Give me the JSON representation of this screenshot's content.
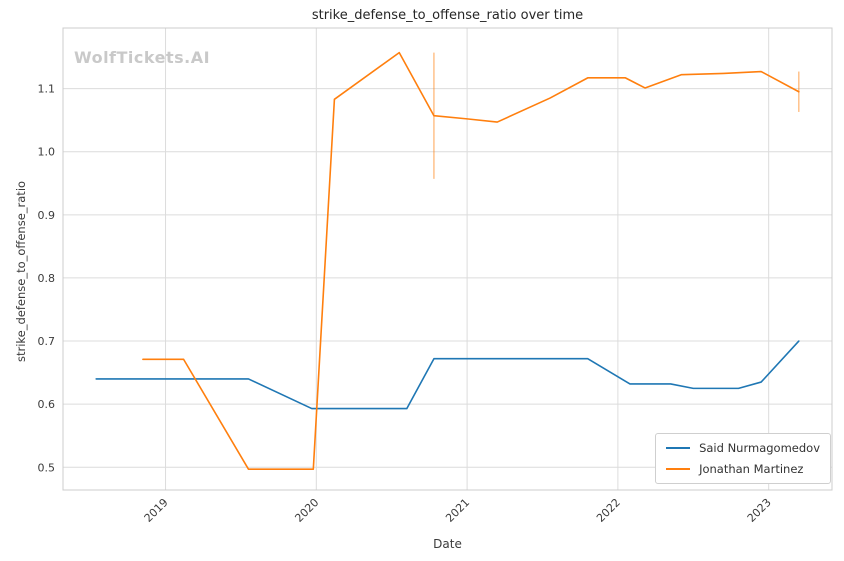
{
  "watermark": "WolfTickets.AI",
  "chart_data": {
    "type": "line",
    "title": "strike_defense_to_offense_ratio over time",
    "xlabel": "Date",
    "ylabel": "strike_defense_to_offense_ratio",
    "grid": true,
    "legend_position": "lower right",
    "xlim": [
      2018.32,
      2023.42
    ],
    "ylim": [
      0.464,
      1.196
    ],
    "x_ticks": [
      2019,
      2020,
      2021,
      2022,
      2023
    ],
    "y_ticks": [
      0.5,
      0.6,
      0.7,
      0.8,
      0.9,
      1.0,
      1.1
    ],
    "colors": {
      "grid": "#dcdcdc",
      "border": "#cccccc",
      "background": "#ffffff"
    },
    "series": [
      {
        "name": "Said Nurmagomedov",
        "color": "#1f77b4",
        "x": [
          2018.54,
          2019.15,
          2019.55,
          2019.97,
          2020.6,
          2020.78,
          2021.3,
          2021.8,
          2022.08,
          2022.35,
          2022.5,
          2022.8,
          2022.95,
          2023.2
        ],
        "y": [
          0.64,
          0.64,
          0.64,
          0.593,
          0.593,
          0.672,
          0.672,
          0.672,
          0.632,
          0.632,
          0.625,
          0.625,
          0.635,
          0.7
        ],
        "error_bars": []
      },
      {
        "name": "Jonathan Martinez",
        "color": "#ff7f0e",
        "x": [
          2018.85,
          2019.12,
          2019.55,
          2019.98,
          2020.12,
          2020.55,
          2020.78,
          2021.0,
          2021.2,
          2021.55,
          2021.8,
          2022.05,
          2022.18,
          2022.42,
          2022.7,
          2022.95,
          2023.2
        ],
        "y": [
          0.671,
          0.671,
          0.497,
          0.497,
          1.083,
          1.157,
          1.057,
          1.052,
          1.047,
          1.085,
          1.117,
          1.117,
          1.101,
          1.122,
          1.124,
          1.127,
          1.095
        ],
        "error_bars": [
          {
            "x": 2020.78,
            "y_low": 0.957,
            "y_high": 1.157
          },
          {
            "x": 2023.2,
            "y_low": 1.063,
            "y_high": 1.127
          }
        ]
      }
    ]
  }
}
